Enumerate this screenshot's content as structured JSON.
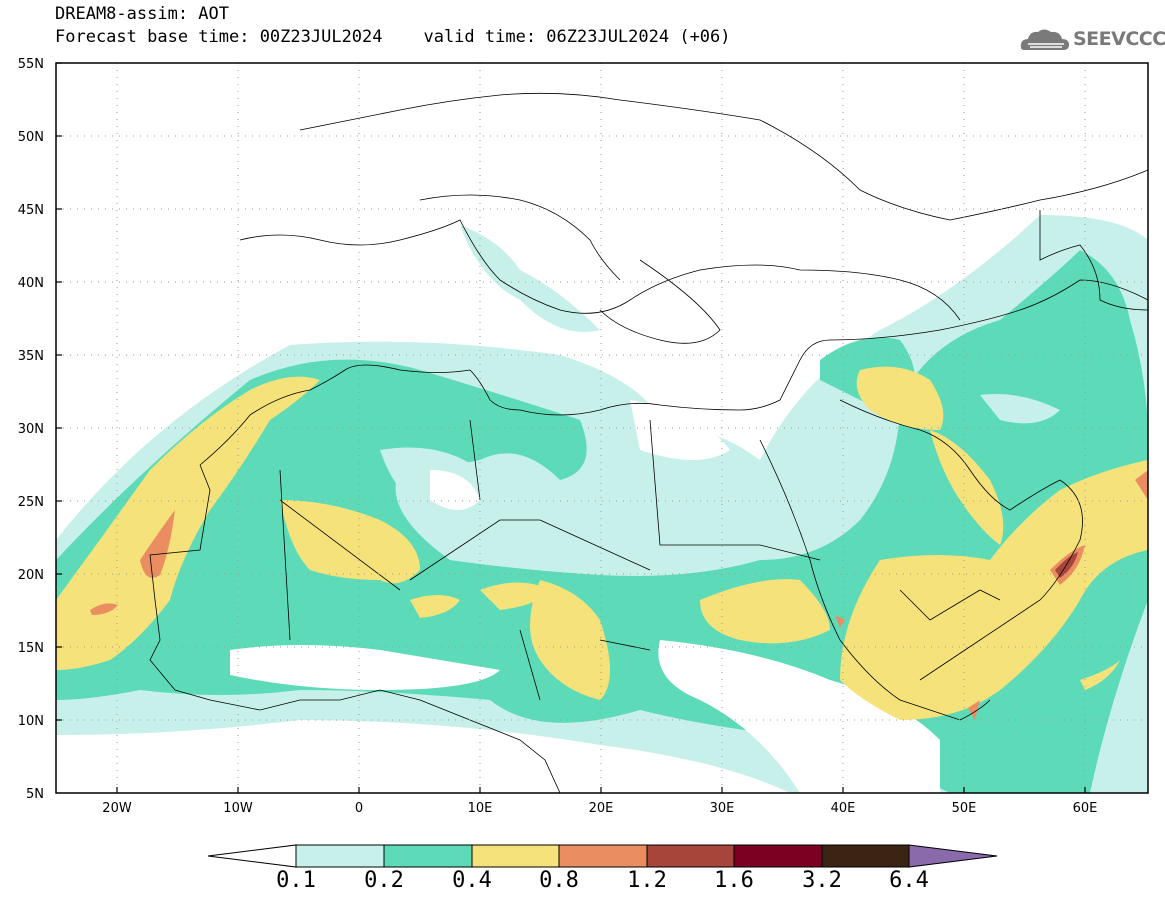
{
  "header": {
    "title": "DREAM8-assim: AOT",
    "forecast_base_time_label": "Forecast base time: 00Z23JUL2024",
    "valid_time_label": "valid time: 06Z23JUL2024 (+06)"
  },
  "logo": {
    "text": "SEEVCCC",
    "icon": "cloud-icon"
  },
  "axes": {
    "latitude_ticks": [
      "55N",
      "50N",
      "45N",
      "40N",
      "35N",
      "30N",
      "25N",
      "20N",
      "15N",
      "10N",
      "5N"
    ],
    "longitude_ticks": [
      "20W",
      "10W",
      "0",
      "10E",
      "20E",
      "30E",
      "40E",
      "50E",
      "60E"
    ]
  },
  "colorbar": {
    "levels": [
      "0.1",
      "0.2",
      "0.4",
      "0.8",
      "1.2",
      "1.6",
      "3.2",
      "6.4"
    ],
    "colors": [
      "#ffffff",
      "#c8f0ea",
      "#5ddbb8",
      "#f5e27a",
      "#ea8e62",
      "#a8453a",
      "#7a0022",
      "#3b2414",
      "#8a6aaa"
    ]
  },
  "map": {
    "extent": {
      "lon": [
        -25,
        65
      ],
      "lat": [
        5,
        55
      ]
    },
    "grid": true
  }
}
